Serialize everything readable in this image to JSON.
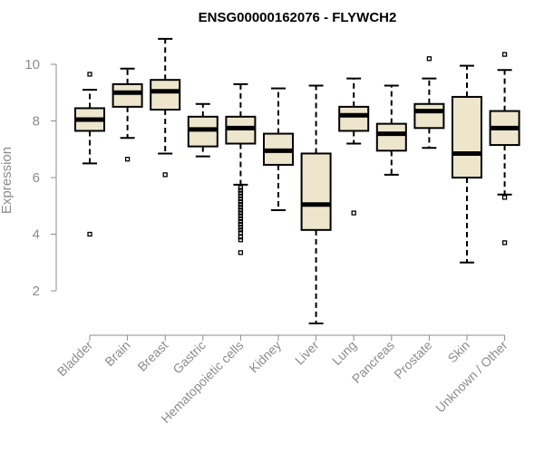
{
  "chart_data": {
    "type": "boxplot",
    "title": "ENSG00000162076 - FLYWCH2",
    "xlabel": "",
    "ylabel": "Expression",
    "ylim": [
      0.5,
      11.0
    ],
    "yticks": [
      2,
      4,
      6,
      8,
      10
    ],
    "box_fill": "#ede6cd",
    "box_stroke": "#000000",
    "categories": [
      "Bladder",
      "Brain",
      "Breast",
      "Gastric",
      "Hematopoietic cells",
      "Kidney",
      "Liver",
      "Lung",
      "Pancreas",
      "Prostate",
      "Skin",
      "Unknown / Other"
    ],
    "boxes": [
      {
        "whisker_low": 6.5,
        "q1": 7.65,
        "median": 8.05,
        "q3": 8.45,
        "whisker_high": 9.1,
        "outliers": [
          9.65,
          4.0
        ]
      },
      {
        "whisker_low": 7.4,
        "q1": 8.5,
        "median": 9.0,
        "q3": 9.3,
        "whisker_high": 9.85,
        "outliers": [
          6.65
        ]
      },
      {
        "whisker_low": 6.85,
        "q1": 8.4,
        "median": 9.05,
        "q3": 9.45,
        "whisker_high": 10.9,
        "outliers": [
          6.1
        ]
      },
      {
        "whisker_low": 6.75,
        "q1": 7.1,
        "median": 7.7,
        "q3": 8.15,
        "whisker_high": 8.6,
        "outliers": []
      },
      {
        "whisker_low": 5.75,
        "q1": 7.2,
        "median": 7.75,
        "q3": 8.15,
        "whisker_high": 9.3,
        "outliers": [
          5.65,
          5.55,
          5.45,
          5.35,
          5.25,
          5.15,
          5.05,
          4.95,
          4.85,
          4.75,
          4.65,
          4.55,
          4.45,
          4.35,
          4.25,
          4.15,
          4.05,
          3.9,
          3.8,
          3.35
        ]
      },
      {
        "whisker_low": 4.85,
        "q1": 6.45,
        "median": 6.95,
        "q3": 7.55,
        "whisker_high": 9.15,
        "outliers": []
      },
      {
        "whisker_low": 0.85,
        "q1": 4.15,
        "median": 5.05,
        "q3": 6.85,
        "whisker_high": 9.25,
        "outliers": []
      },
      {
        "whisker_low": 7.2,
        "q1": 7.65,
        "median": 8.2,
        "q3": 8.5,
        "whisker_high": 9.5,
        "outliers": [
          4.75
        ]
      },
      {
        "whisker_low": 6.1,
        "q1": 6.95,
        "median": 7.55,
        "q3": 7.9,
        "whisker_high": 9.25,
        "outliers": []
      },
      {
        "whisker_low": 7.05,
        "q1": 7.75,
        "median": 8.35,
        "q3": 8.6,
        "whisker_high": 9.5,
        "outliers": [
          10.2
        ]
      },
      {
        "whisker_low": 3.0,
        "q1": 6.0,
        "median": 6.85,
        "q3": 8.85,
        "whisker_high": 9.95,
        "outliers": []
      },
      {
        "whisker_low": 5.4,
        "q1": 7.15,
        "median": 7.75,
        "q3": 8.35,
        "whisker_high": 9.8,
        "outliers": [
          10.35,
          5.3,
          3.7
        ]
      }
    ]
  }
}
